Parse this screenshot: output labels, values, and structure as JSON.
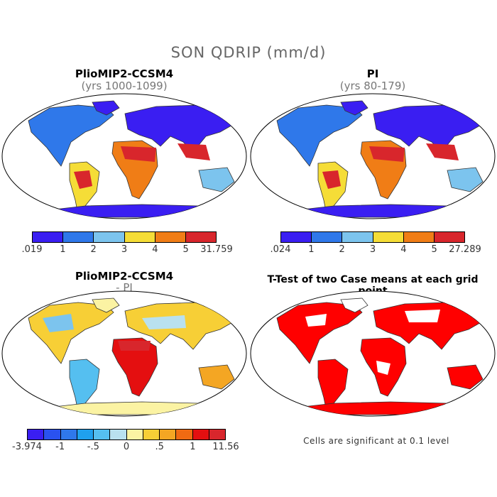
{
  "title": "SON QDRIP (mm/d)",
  "panels": {
    "top_left": {
      "title": "PlioMIP2-CCSM4",
      "subtitle": "(yrs 1000-1099)"
    },
    "top_right": {
      "title": "PI",
      "subtitle": "(yrs 80-179)"
    },
    "bottom_left": {
      "title": "PlioMIP2-CCSM4",
      "subtitle": "- PI"
    },
    "bottom_right": {
      "title": "T-Test of two Case means at each grid point",
      "note": "Cells are significant at 0.1 level"
    }
  },
  "colorbars": {
    "top_left": {
      "colors": [
        "#3a1ef2",
        "#2f78ea",
        "#7cc4ee",
        "#f5dd37",
        "#f07d16",
        "#d8262c"
      ],
      "labels": [
        ".019",
        "1",
        "2",
        "3",
        "4",
        "5",
        "31.759"
      ]
    },
    "top_right": {
      "colors": [
        "#3a1ef2",
        "#2f78ea",
        "#7cc4ee",
        "#f5dd37",
        "#f07d16",
        "#d8262c"
      ],
      "labels": [
        ".024",
        "1",
        "2",
        "3",
        "4",
        "5",
        "27.289"
      ]
    },
    "bottom_left": {
      "colors": [
        "#3a1ef2",
        "#2a52f0",
        "#2f78ea",
        "#1fa0ee",
        "#55bff0",
        "#b9e1ef",
        "#fbf3a3",
        "#f7cf36",
        "#f4a623",
        "#f06a12",
        "#e40f10",
        "#d8262c"
      ],
      "labels": [
        "-3.974",
        "-1",
        "-.5",
        "0",
        ".5",
        "1",
        "11.56"
      ]
    }
  }
}
